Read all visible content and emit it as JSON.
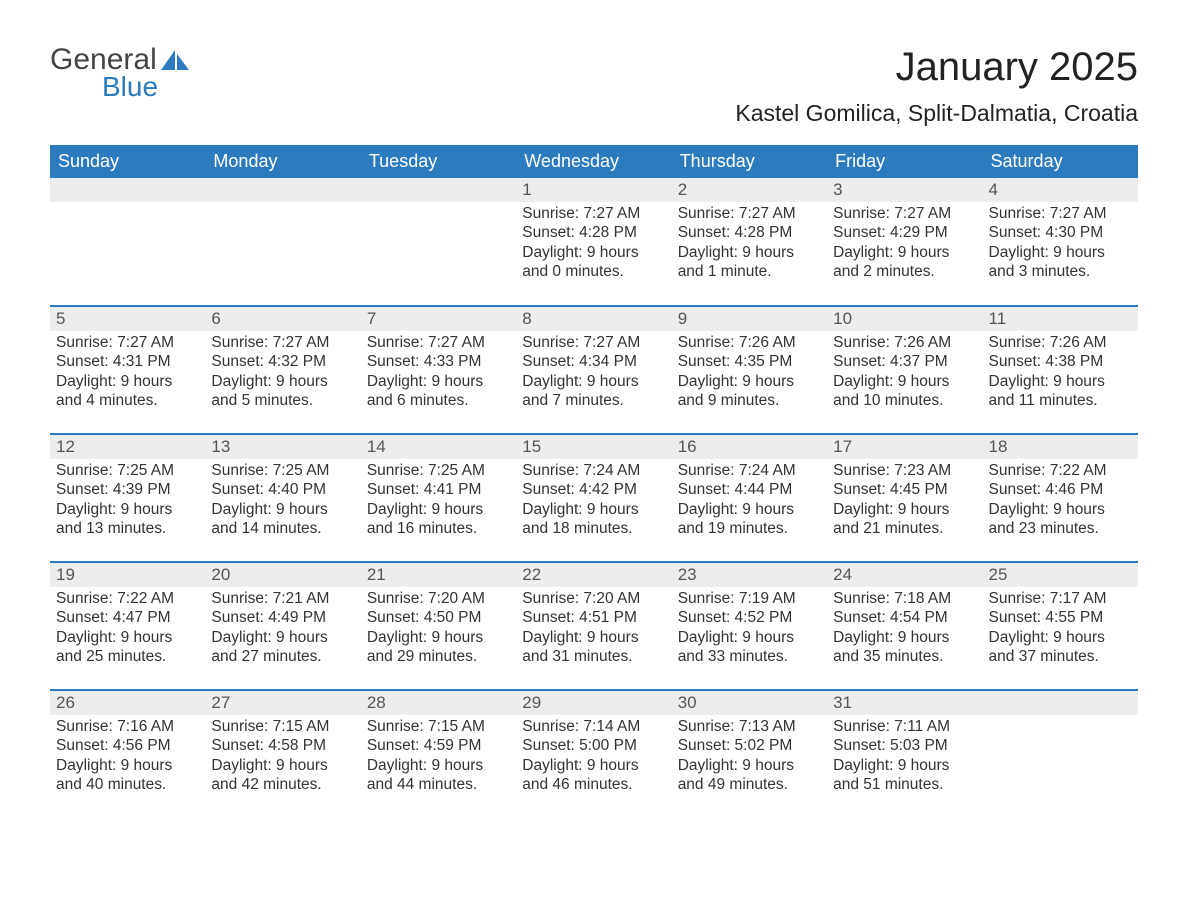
{
  "logo": {
    "text1": "General",
    "text2": "Blue",
    "shape_color": "#2d7bbf"
  },
  "header": {
    "month_title": "January 2025",
    "location": "Kastel Gomilica, Split-Dalmatia, Croatia"
  },
  "calendar": {
    "header_bg": "#2d7bbf",
    "header_fg": "#ffffff",
    "row_accent": "#2d7bbf",
    "daynum_bg": "#ededed",
    "background": "#ffffff",
    "font_family": "Arial",
    "body_fontsize": 15.5,
    "header_fontsize": 18,
    "daynum_fontsize": 17,
    "columns": [
      "Sunday",
      "Monday",
      "Tuesday",
      "Wednesday",
      "Thursday",
      "Friday",
      "Saturday"
    ],
    "weeks": [
      [
        null,
        null,
        null,
        {
          "n": "1",
          "sunrise": "7:27 AM",
          "sunset": "4:28 PM",
          "daylight": "9 hours and 0 minutes."
        },
        {
          "n": "2",
          "sunrise": "7:27 AM",
          "sunset": "4:28 PM",
          "daylight": "9 hours and 1 minute."
        },
        {
          "n": "3",
          "sunrise": "7:27 AM",
          "sunset": "4:29 PM",
          "daylight": "9 hours and 2 minutes."
        },
        {
          "n": "4",
          "sunrise": "7:27 AM",
          "sunset": "4:30 PM",
          "daylight": "9 hours and 3 minutes."
        }
      ],
      [
        {
          "n": "5",
          "sunrise": "7:27 AM",
          "sunset": "4:31 PM",
          "daylight": "9 hours and 4 minutes."
        },
        {
          "n": "6",
          "sunrise": "7:27 AM",
          "sunset": "4:32 PM",
          "daylight": "9 hours and 5 minutes."
        },
        {
          "n": "7",
          "sunrise": "7:27 AM",
          "sunset": "4:33 PM",
          "daylight": "9 hours and 6 minutes."
        },
        {
          "n": "8",
          "sunrise": "7:27 AM",
          "sunset": "4:34 PM",
          "daylight": "9 hours and 7 minutes."
        },
        {
          "n": "9",
          "sunrise": "7:26 AM",
          "sunset": "4:35 PM",
          "daylight": "9 hours and 9 minutes."
        },
        {
          "n": "10",
          "sunrise": "7:26 AM",
          "sunset": "4:37 PM",
          "daylight": "9 hours and 10 minutes."
        },
        {
          "n": "11",
          "sunrise": "7:26 AM",
          "sunset": "4:38 PM",
          "daylight": "9 hours and 11 minutes."
        }
      ],
      [
        {
          "n": "12",
          "sunrise": "7:25 AM",
          "sunset": "4:39 PM",
          "daylight": "9 hours and 13 minutes."
        },
        {
          "n": "13",
          "sunrise": "7:25 AM",
          "sunset": "4:40 PM",
          "daylight": "9 hours and 14 minutes."
        },
        {
          "n": "14",
          "sunrise": "7:25 AM",
          "sunset": "4:41 PM",
          "daylight": "9 hours and 16 minutes."
        },
        {
          "n": "15",
          "sunrise": "7:24 AM",
          "sunset": "4:42 PM",
          "daylight": "9 hours and 18 minutes."
        },
        {
          "n": "16",
          "sunrise": "7:24 AM",
          "sunset": "4:44 PM",
          "daylight": "9 hours and 19 minutes."
        },
        {
          "n": "17",
          "sunrise": "7:23 AM",
          "sunset": "4:45 PM",
          "daylight": "9 hours and 21 minutes."
        },
        {
          "n": "18",
          "sunrise": "7:22 AM",
          "sunset": "4:46 PM",
          "daylight": "9 hours and 23 minutes."
        }
      ],
      [
        {
          "n": "19",
          "sunrise": "7:22 AM",
          "sunset": "4:47 PM",
          "daylight": "9 hours and 25 minutes."
        },
        {
          "n": "20",
          "sunrise": "7:21 AM",
          "sunset": "4:49 PM",
          "daylight": "9 hours and 27 minutes."
        },
        {
          "n": "21",
          "sunrise": "7:20 AM",
          "sunset": "4:50 PM",
          "daylight": "9 hours and 29 minutes."
        },
        {
          "n": "22",
          "sunrise": "7:20 AM",
          "sunset": "4:51 PM",
          "daylight": "9 hours and 31 minutes."
        },
        {
          "n": "23",
          "sunrise": "7:19 AM",
          "sunset": "4:52 PM",
          "daylight": "9 hours and 33 minutes."
        },
        {
          "n": "24",
          "sunrise": "7:18 AM",
          "sunset": "4:54 PM",
          "daylight": "9 hours and 35 minutes."
        },
        {
          "n": "25",
          "sunrise": "7:17 AM",
          "sunset": "4:55 PM",
          "daylight": "9 hours and 37 minutes."
        }
      ],
      [
        {
          "n": "26",
          "sunrise": "7:16 AM",
          "sunset": "4:56 PM",
          "daylight": "9 hours and 40 minutes."
        },
        {
          "n": "27",
          "sunrise": "7:15 AM",
          "sunset": "4:58 PM",
          "daylight": "9 hours and 42 minutes."
        },
        {
          "n": "28",
          "sunrise": "7:15 AM",
          "sunset": "4:59 PM",
          "daylight": "9 hours and 44 minutes."
        },
        {
          "n": "29",
          "sunrise": "7:14 AM",
          "sunset": "5:00 PM",
          "daylight": "9 hours and 46 minutes."
        },
        {
          "n": "30",
          "sunrise": "7:13 AM",
          "sunset": "5:02 PM",
          "daylight": "9 hours and 49 minutes."
        },
        {
          "n": "31",
          "sunrise": "7:11 AM",
          "sunset": "5:03 PM",
          "daylight": "9 hours and 51 minutes."
        },
        null
      ]
    ],
    "labels": {
      "sunrise": "Sunrise: ",
      "sunset": "Sunset: ",
      "daylight": "Daylight: "
    }
  }
}
